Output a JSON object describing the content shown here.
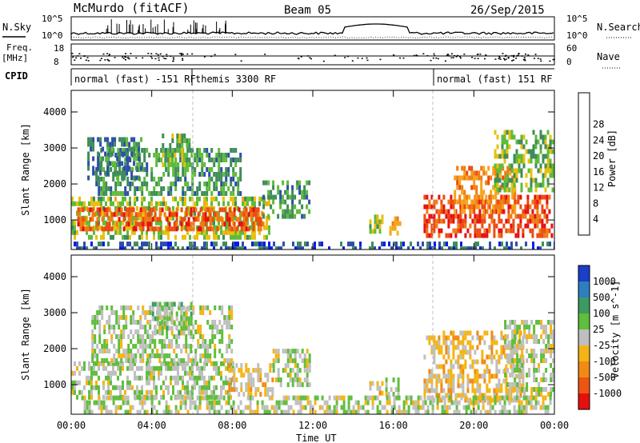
{
  "header": {
    "title": "McMurdo (fitACF)",
    "beam": "Beam 05",
    "date": "26/Sep/2015"
  },
  "noise_panel": {
    "left_label": "N.Sky",
    "right_label": "N.Search",
    "left_ticks": [
      "10^5",
      "10^0"
    ],
    "right_ticks": [
      "10^5",
      "10^0"
    ]
  },
  "freq_panel": {
    "left_label_1": "Freq.",
    "left_label_2": "[MHz]",
    "right_label": "Nave",
    "left_ticks": [
      "18",
      "8"
    ],
    "right_ticks": [
      "60",
      "0"
    ]
  },
  "cpid_panel": {
    "label": "CPID",
    "segments": [
      {
        "label": "normal (fast) -151 RF",
        "start_hour": 0,
        "end_hour": 6
      },
      {
        "label": "themis 3300 RF",
        "start_hour": 6,
        "end_hour": 18
      },
      {
        "label": "normal (fast) 151 RF",
        "start_hour": 18,
        "end_hour": 24
      }
    ]
  },
  "time_axis": {
    "label": "Time UT",
    "ticks": [
      "00:00",
      "04:00",
      "08:00",
      "12:00",
      "16:00",
      "20:00",
      "00:00"
    ]
  },
  "power_panel": {
    "ylabel": "Slant Range [km]",
    "yticks": [
      "1000",
      "2000",
      "3000",
      "4000"
    ],
    "colorbar_label": "Power [dB]",
    "colorbar_ticks": [
      "4",
      "8",
      "12",
      "16",
      "20",
      "24",
      "28"
    ],
    "colors": [
      "#0a1be8",
      "#2d4fa8",
      "#3f8c5a",
      "#5fbb3a",
      "#e8c00c",
      "#f5a31a",
      "#f07b12",
      "#ec4a10",
      "#e60f0f"
    ]
  },
  "velocity_panel": {
    "ylabel": "Slant Range [km]",
    "yticks": [
      "1000",
      "2000",
      "3000",
      "4000"
    ],
    "colorbar_label": "Velocity [m s^-1]",
    "colorbar_ticks": [
      "1000",
      "500",
      "100",
      "25",
      "-25",
      "-100",
      "-500",
      "-1000"
    ],
    "colors": [
      "#1b3fc8",
      "#2e7ec0",
      "#3c9a63",
      "#5fbe3c",
      "#bfbfbf",
      "#f5b415",
      "#f08a15",
      "#ee5515",
      "#e6110f"
    ]
  },
  "chart_data": [
    {
      "type": "heatmap",
      "title": "Power",
      "xlabel": "Time UT",
      "ylabel": "Slant Range [km]",
      "xlim": [
        0,
        24
      ],
      "ylim": [
        180,
        4600
      ],
      "colorbar": {
        "label": "Power [dB]",
        "range": [
          0,
          32
        ]
      },
      "patches": [
        {
          "t0": 0.0,
          "t1": 9.8,
          "r0": 550,
          "r1": 1650,
          "value": 14
        },
        {
          "t0": 0.3,
          "t1": 9.5,
          "r0": 700,
          "r1": 1350,
          "value": 26
        },
        {
          "t0": 1.2,
          "t1": 8.4,
          "r0": 1700,
          "r1": 3000,
          "value": 10
        },
        {
          "t0": 0.8,
          "t1": 3.5,
          "r0": 2200,
          "r1": 3300,
          "value": 8
        },
        {
          "t0": 4.5,
          "t1": 6.0,
          "r0": 2500,
          "r1": 3400,
          "value": 12
        },
        {
          "t0": 9.5,
          "t1": 11.8,
          "r0": 1100,
          "r1": 2100,
          "value": 10
        },
        {
          "t0": 14.8,
          "t1": 15.5,
          "r0": 750,
          "r1": 1150,
          "value": 14
        },
        {
          "t0": 15.8,
          "t1": 16.3,
          "r0": 700,
          "r1": 1100,
          "value": 20
        },
        {
          "t0": 17.5,
          "t1": 23.9,
          "r0": 600,
          "r1": 1700,
          "value": 27
        },
        {
          "t0": 19.0,
          "t1": 22.0,
          "r0": 1300,
          "r1": 2500,
          "value": 22
        },
        {
          "t0": 21.0,
          "t1": 24.0,
          "r0": 1900,
          "r1": 3500,
          "value": 12
        },
        {
          "t0": 0.0,
          "t1": 24.0,
          "r0": 200,
          "r1": 400,
          "value": 6
        }
      ]
    },
    {
      "type": "heatmap",
      "title": "Velocity",
      "xlabel": "Time UT",
      "ylabel": "Slant Range [km]",
      "xlim": [
        0,
        24
      ],
      "ylim": [
        180,
        4600
      ],
      "colorbar": {
        "label": "Velocity [m s^-1]",
        "range": [
          -1000,
          1000
        ]
      },
      "patches": [
        {
          "t0": 0.0,
          "t1": 8.0,
          "r0": 650,
          "r1": 1650,
          "value": 80
        },
        {
          "t0": 1.0,
          "t1": 8.0,
          "r0": 1700,
          "r1": 3200,
          "value": 60
        },
        {
          "t0": 4.0,
          "t1": 6.0,
          "r0": 2500,
          "r1": 3300,
          "value": 120
        },
        {
          "t0": 7.8,
          "t1": 10.0,
          "r0": 800,
          "r1": 1600,
          "value": -150
        },
        {
          "t0": 10.0,
          "t1": 11.8,
          "r0": 1000,
          "r1": 2000,
          "value": 50
        },
        {
          "t0": 14.8,
          "t1": 15.5,
          "r0": 750,
          "r1": 1100,
          "value": -150
        },
        {
          "t0": 15.6,
          "t1": 16.2,
          "r0": 800,
          "r1": 1200,
          "value": 60
        },
        {
          "t0": 17.5,
          "t1": 22.5,
          "r0": 600,
          "r1": 2500,
          "value": -180
        },
        {
          "t0": 21.5,
          "t1": 24.0,
          "r0": 800,
          "r1": 2800,
          "value": 60
        },
        {
          "t0": 0.5,
          "t1": 24.0,
          "r0": 300,
          "r1": 700,
          "value": 40
        }
      ]
    }
  ]
}
